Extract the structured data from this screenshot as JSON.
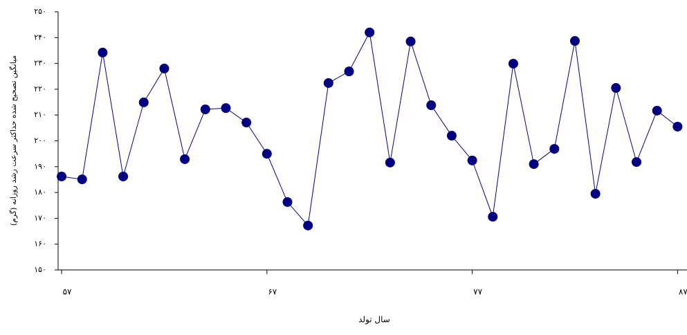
{
  "chart_data": {
    "type": "line",
    "x_label": "سال تولد",
    "y_label": "میانگین تصحیح شده حداکثر سرعت رشد روزانه (گرم)",
    "x": [
      57,
      58,
      59,
      60,
      61,
      62,
      63,
      64,
      65,
      66,
      67,
      68,
      69,
      70,
      71,
      72,
      73,
      74,
      75,
      76,
      77,
      78,
      79,
      80,
      81,
      82,
      83,
      84,
      85,
      86,
      87
    ],
    "series": [
      {
        "color": "#000080",
        "values": [
          186.2,
          185.1,
          234.2,
          186.2,
          214.9,
          228.0,
          192.9,
          212.2,
          212.7,
          207.1,
          195.0,
          176.3,
          167.2,
          222.4,
          226.9,
          242.0,
          191.6,
          238.5,
          213.8,
          202.0,
          192.4,
          170.6,
          229.9,
          191.0,
          196.9,
          238.7,
          179.5,
          220.5,
          191.8,
          211.7,
          205.5
        ]
      }
    ],
    "xlim": [
      56.83,
      87.46
    ],
    "xticks": [
      {
        "value": 57,
        "label": "۵۷"
      },
      {
        "value": 67,
        "label": "۶۷"
      },
      {
        "value": 77,
        "label": "۷۷"
      },
      {
        "value": 87,
        "label": "۸۷"
      }
    ],
    "ylim": [
      150,
      250
    ],
    "yticks": [
      {
        "value": 150,
        "label": "۱۵۰"
      },
      {
        "value": 160,
        "label": "۱۶۰"
      },
      {
        "value": 170,
        "label": "۱۷۰"
      },
      {
        "value": 180,
        "label": "۱۸۰"
      },
      {
        "value": 190,
        "label": "۱۹۰"
      },
      {
        "value": 200,
        "label": "۲۰۰"
      },
      {
        "value": 210,
        "label": "۲۱۰"
      },
      {
        "value": 220,
        "label": "۲۲۰"
      },
      {
        "value": 230,
        "label": "۲۳۰"
      },
      {
        "value": 240,
        "label": "۲۴۰"
      },
      {
        "value": 250,
        "label": "۲۵۰"
      }
    ]
  }
}
